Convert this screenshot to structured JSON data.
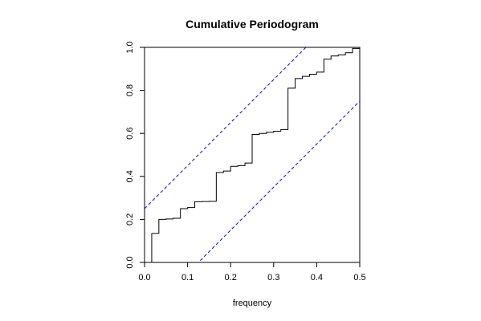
{
  "chart_data": {
    "type": "line",
    "title": "Cumulative Periodogram",
    "xlabel": "frequency",
    "ylabel": "",
    "xlim": [
      0,
      0.5
    ],
    "ylim": [
      0,
      1
    ],
    "x_ticks": [
      "0.0",
      "0.1",
      "0.2",
      "0.3",
      "0.4",
      "0.5"
    ],
    "y_ticks": [
      "0.0",
      "0.2",
      "0.4",
      "0.6",
      "0.8",
      "1.0"
    ],
    "grid": false,
    "legend": "none",
    "colors": {
      "step": "#000000",
      "bounds": "#0000ff"
    },
    "series": [
      {
        "style": "step",
        "x": [
          0.0,
          0.0167,
          0.0333,
          0.05,
          0.0667,
          0.0833,
          0.1,
          0.1167,
          0.1333,
          0.15,
          0.1667,
          0.1833,
          0.2,
          0.2167,
          0.2333,
          0.25,
          0.2667,
          0.2833,
          0.3,
          0.3167,
          0.3333,
          0.35,
          0.3667,
          0.3833,
          0.4,
          0.4167,
          0.4333,
          0.45,
          0.4667,
          0.4833,
          0.5
        ],
        "y": [
          0.0,
          0.135,
          0.2,
          0.202,
          0.205,
          0.25,
          0.255,
          0.282,
          0.283,
          0.284,
          0.418,
          0.425,
          0.447,
          0.45,
          0.462,
          0.595,
          0.6,
          0.605,
          0.61,
          0.618,
          0.81,
          0.855,
          0.865,
          0.875,
          0.885,
          0.945,
          0.96,
          0.965,
          0.975,
          0.995,
          1.0
        ]
      },
      {
        "style": "dashed",
        "x": [
          0.0,
          0.5
        ],
        "y": [
          0.25,
          1.25
        ]
      },
      {
        "style": "dashed",
        "x": [
          0.0,
          0.5
        ],
        "y": [
          -0.25,
          0.75
        ]
      }
    ]
  }
}
